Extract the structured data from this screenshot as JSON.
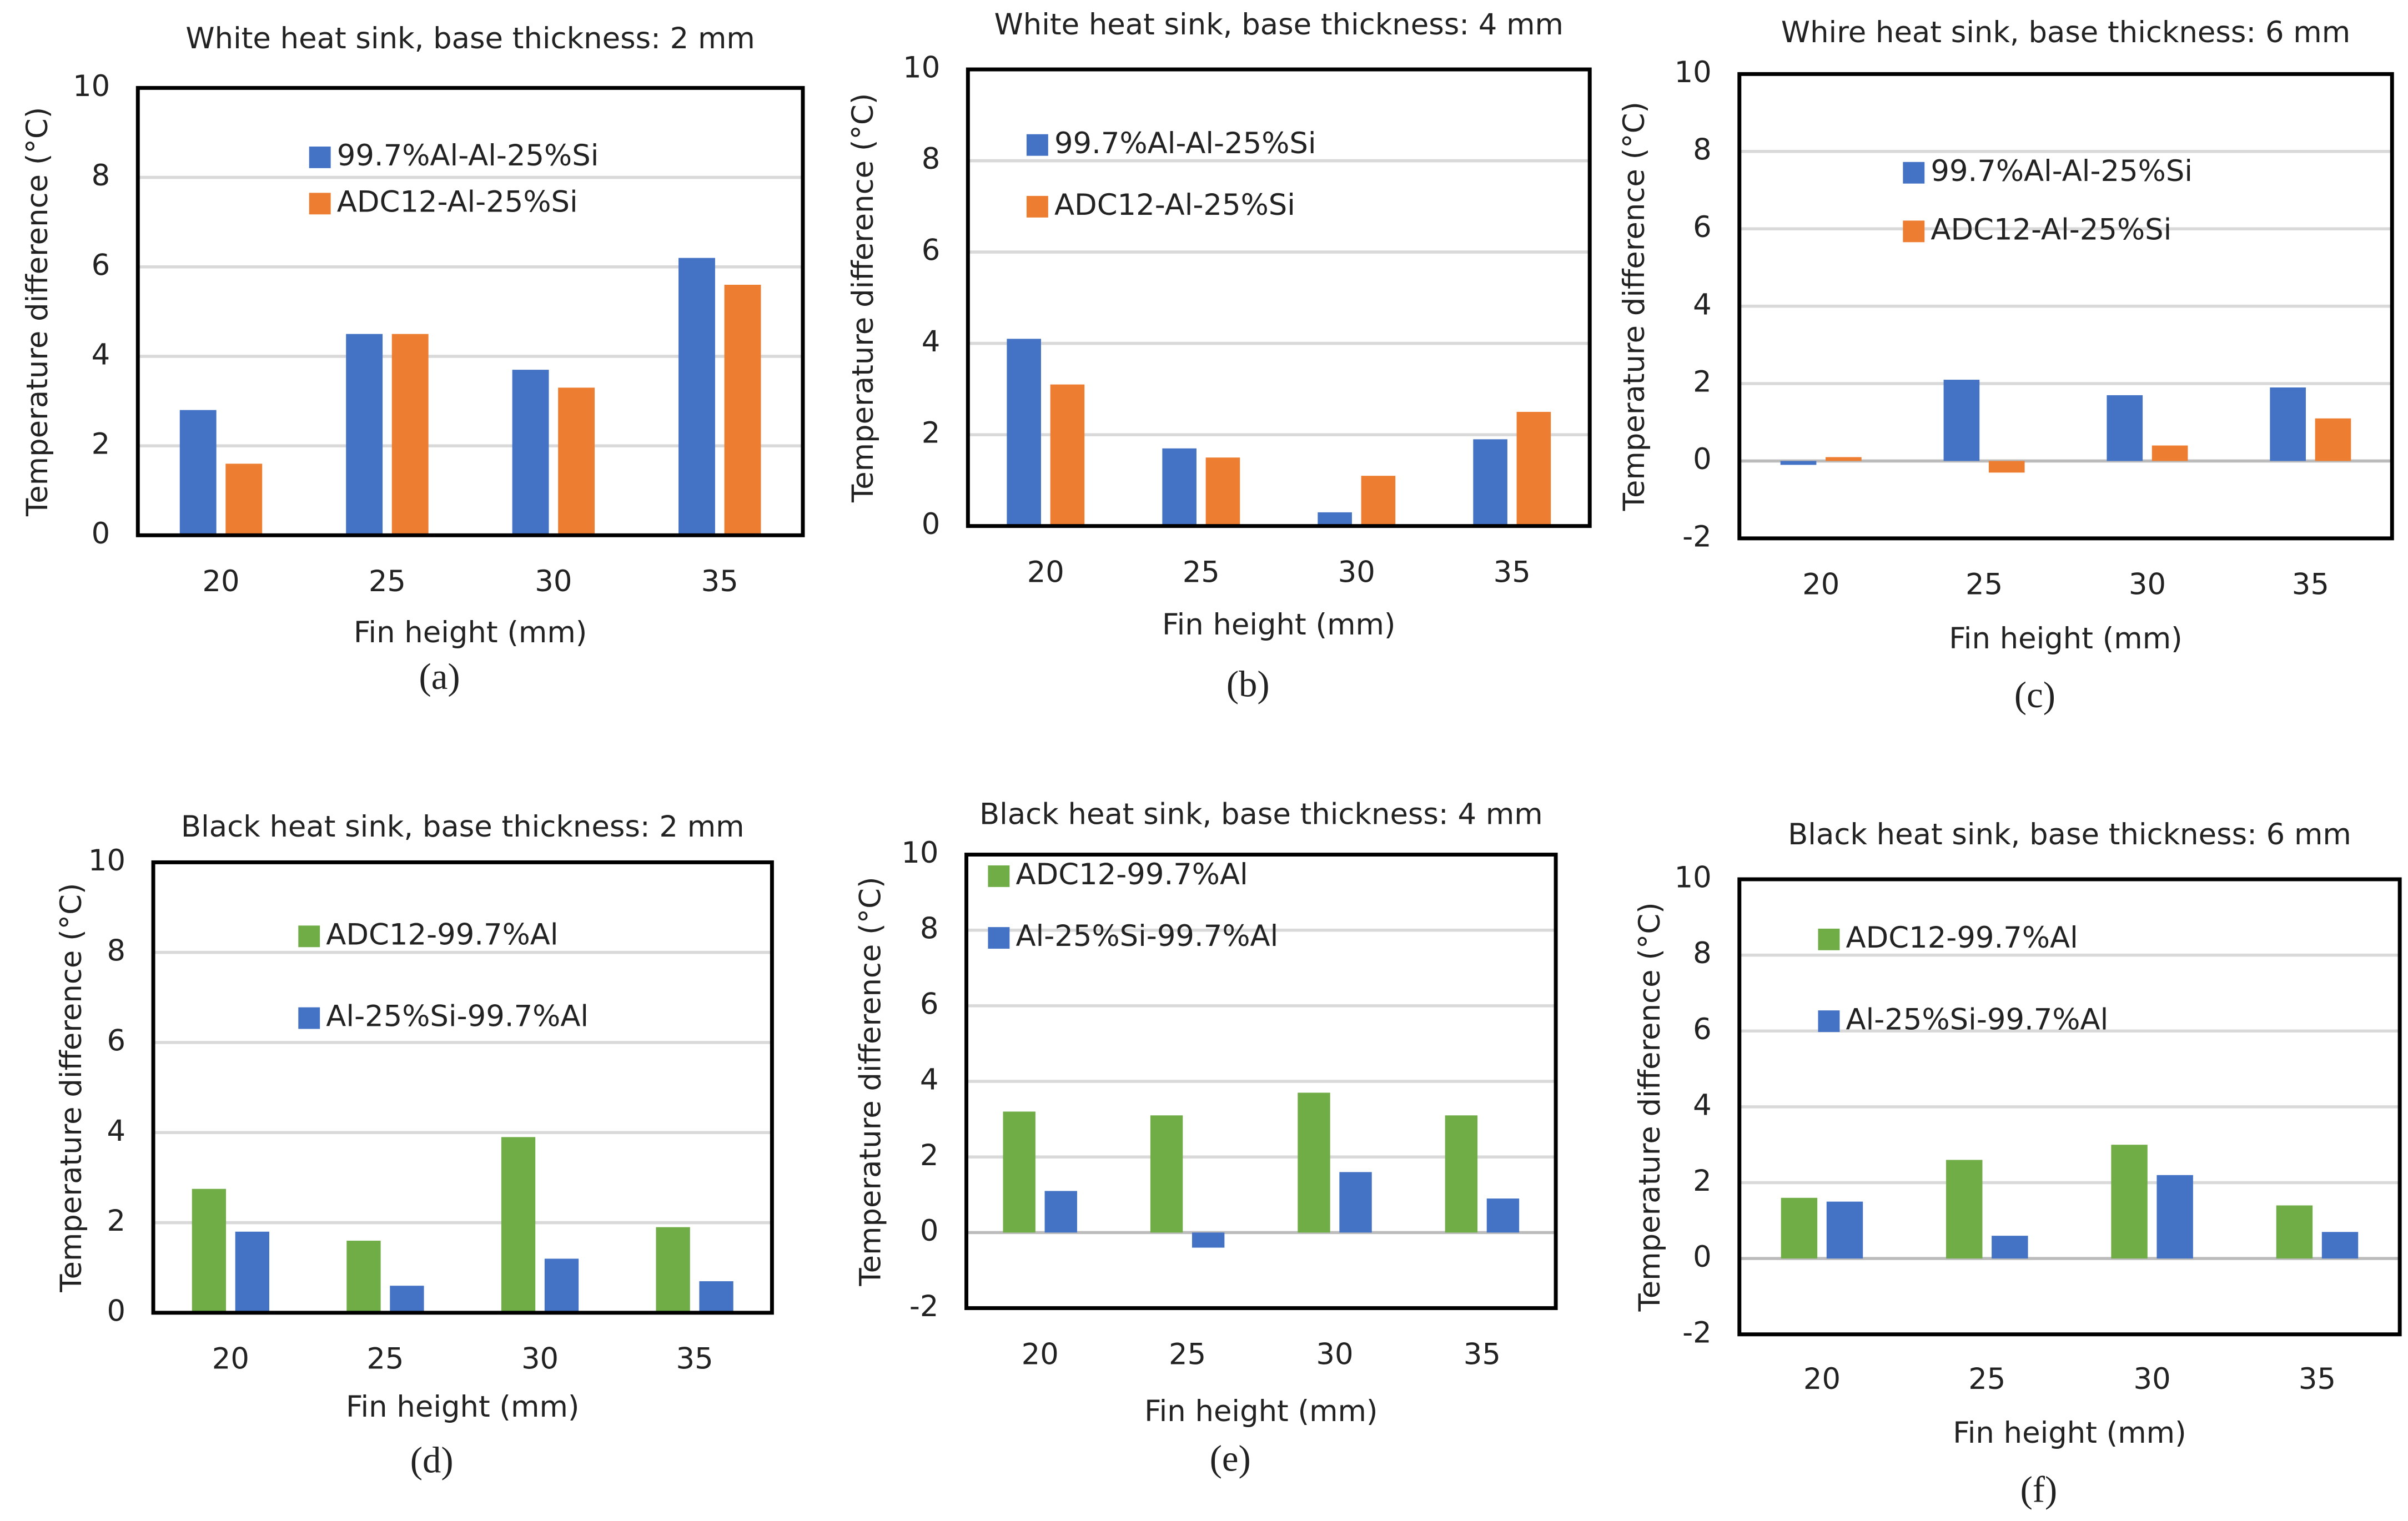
{
  "chart_data": [
    {
      "type": "bar",
      "title": "White heat sink, base thickness: 2 mm",
      "panel_label": "(a)",
      "x_label": "Fin height (mm)",
      "y_label": "Temperature difference (°C)",
      "categories": [
        "20",
        "25",
        "30",
        "35"
      ],
      "ylim": [
        0,
        10
      ],
      "yticks": [
        0,
        2,
        4,
        6,
        8,
        10
      ],
      "grid": true,
      "series": [
        {
          "name": "99.7%Al-Al-25%Si",
          "color": "#4472c4",
          "values": [
            2.8,
            4.5,
            3.7,
            6.2
          ]
        },
        {
          "name": "ADC12-Al-25%Si",
          "color": "#ed7d31",
          "values": [
            1.6,
            4.5,
            3.3,
            5.6
          ]
        }
      ]
    },
    {
      "type": "bar",
      "title": "White heat sink, base thickness: 4 mm",
      "panel_label": "(b)",
      "x_label": "Fin height (mm)",
      "y_label": "Temperature difference (°C)",
      "categories": [
        "20",
        "25",
        "30",
        "35"
      ],
      "ylim": [
        0,
        10
      ],
      "yticks": [
        0,
        2,
        4,
        6,
        8,
        10
      ],
      "grid": true,
      "series": [
        {
          "name": "99.7%Al-Al-25%Si",
          "color": "#4472c4",
          "values": [
            4.1,
            1.7,
            0.3,
            1.9
          ]
        },
        {
          "name": "ADC12-Al-25%Si",
          "color": "#ed7d31",
          "values": [
            3.1,
            1.5,
            1.1,
            2.5
          ]
        }
      ]
    },
    {
      "type": "bar",
      "title": "Whire heat sink, base thickness: 6 mm",
      "panel_label": "(c)",
      "x_label": "Fin height (mm)",
      "y_label": "Temperature difference (°C)",
      "categories": [
        "20",
        "25",
        "30",
        "35"
      ],
      "ylim": [
        -2,
        10
      ],
      "yticks": [
        -2,
        0,
        2,
        4,
        6,
        8,
        10
      ],
      "grid": true,
      "series": [
        {
          "name": "99.7%Al-Al-25%Si",
          "color": "#4472c4",
          "values": [
            -0.1,
            2.1,
            1.7,
            1.9
          ]
        },
        {
          "name": "ADC12-Al-25%Si",
          "color": "#ed7d31",
          "values": [
            0.1,
            -0.3,
            0.4,
            1.1
          ]
        }
      ]
    },
    {
      "type": "bar",
      "title": "Black heat sink, base thickness: 2 mm",
      "panel_label": "(d)",
      "x_label": "Fin height (mm)",
      "y_label": "Temperature difference (°C)",
      "categories": [
        "20",
        "25",
        "30",
        "35"
      ],
      "ylim": [
        0,
        10
      ],
      "yticks": [
        0,
        2,
        4,
        6,
        8,
        10
      ],
      "grid": true,
      "series": [
        {
          "name": "ADC12-99.7%Al",
          "color": "#70ad47",
          "values": [
            2.75,
            1.6,
            3.9,
            1.9
          ]
        },
        {
          "name": "Al-25%Si-99.7%Al",
          "color": "#4472c4",
          "values": [
            1.8,
            0.6,
            1.2,
            0.7
          ]
        }
      ]
    },
    {
      "type": "bar",
      "title": "Black heat sink, base thickness: 4 mm",
      "panel_label": "(e)",
      "x_label": "Fin height (mm)",
      "y_label": "Temperature difference (°C)",
      "categories": [
        "20",
        "25",
        "30",
        "35"
      ],
      "ylim": [
        -2,
        10
      ],
      "yticks": [
        -2,
        0,
        2,
        4,
        6,
        8,
        10
      ],
      "grid": true,
      "series": [
        {
          "name": "ADC12-99.7%Al",
          "color": "#70ad47",
          "values": [
            3.2,
            3.1,
            3.7,
            3.1
          ]
        },
        {
          "name": "Al-25%Si-99.7%Al",
          "color": "#4472c4",
          "values": [
            1.1,
            -0.4,
            1.6,
            0.9
          ]
        }
      ]
    },
    {
      "type": "bar",
      "title": "Black heat sink, base thickness: 6 mm",
      "panel_label": "(f)",
      "x_label": "Fin height (mm)",
      "y_label": "Temperature difference (°C)",
      "categories": [
        "20",
        "25",
        "30",
        "35"
      ],
      "ylim": [
        -2,
        10
      ],
      "yticks": [
        -2,
        0,
        2,
        4,
        6,
        8,
        10
      ],
      "grid": true,
      "series": [
        {
          "name": "ADC12-99.7%Al",
          "color": "#70ad47",
          "values": [
            1.6,
            2.6,
            3.0,
            1.4
          ]
        },
        {
          "name": "Al-25%Si-99.7%Al",
          "color": "#4472c4",
          "values": [
            1.5,
            0.6,
            2.2,
            0.7
          ]
        }
      ]
    }
  ]
}
